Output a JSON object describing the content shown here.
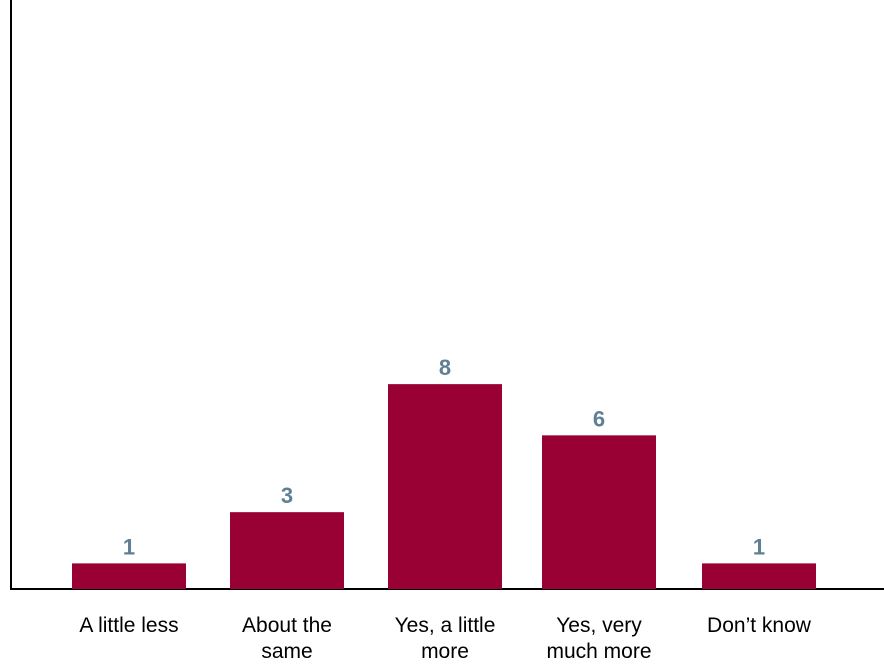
{
  "chart_data": {
    "type": "bar",
    "categories": [
      [
        "A little less"
      ],
      [
        "About the",
        "same"
      ],
      [
        "Yes, a little",
        "more"
      ],
      [
        "Yes, very",
        "much more"
      ],
      [
        "Don’t know"
      ]
    ],
    "values": [
      1,
      3,
      8,
      6,
      1
    ],
    "value_labels": [
      "1",
      "3",
      "8",
      "6",
      "1"
    ],
    "ylim": [
      0,
      23
    ],
    "grid": false,
    "legend": "none",
    "colors": {
      "bar": "#990033",
      "value_label": "#5f7f95",
      "axis": "#000000"
    }
  }
}
